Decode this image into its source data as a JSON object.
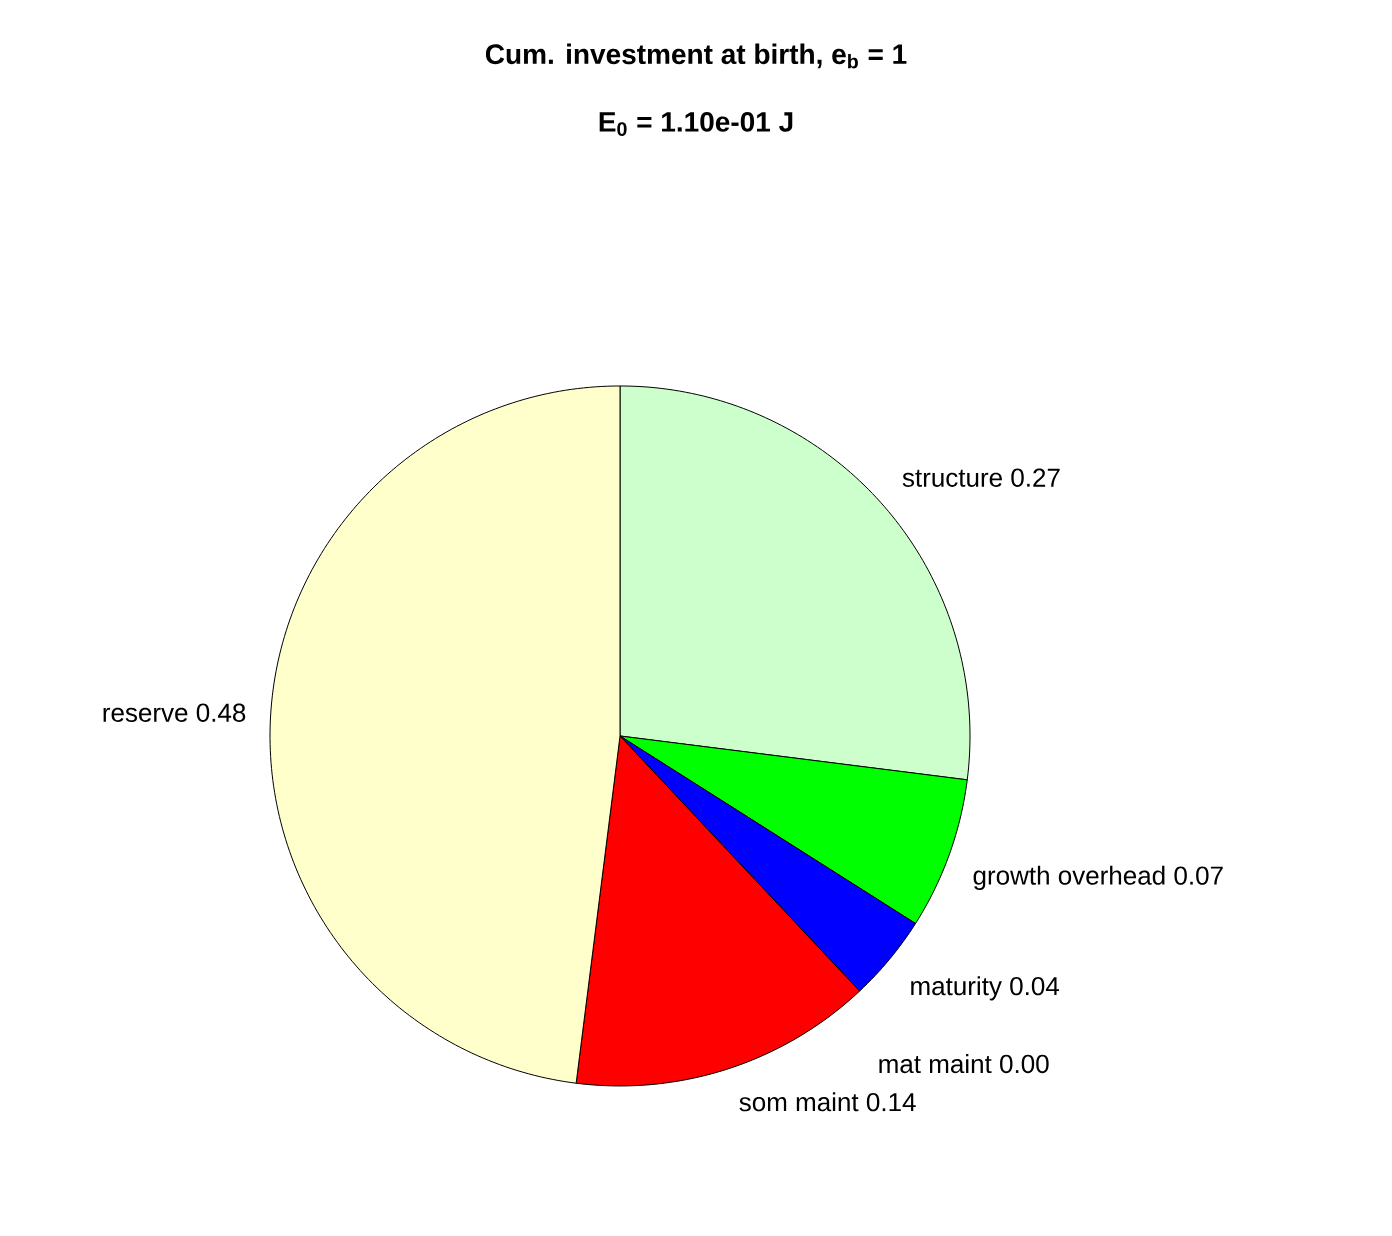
{
  "chart_data": {
    "type": "pie",
    "title": "Cum. investment at birth, e$_{b}$ = 1",
    "subtitle": "E$_{0}$ = 1.10e-01 J",
    "categories": [
      "structure",
      "growth overhead",
      "maturity",
      "mat maint",
      "som maint",
      "reserve"
    ],
    "values": [
      0.27,
      0.07,
      0.04,
      0.0,
      0.14,
      0.48
    ],
    "value_labels": [
      "0.27",
      "0.07",
      "0.04",
      "0.00",
      "0.14",
      "0.48"
    ],
    "colors": [
      "#ccffcc",
      "#00ff00",
      "#0000ff",
      "#ffffff",
      "#ff0000",
      "#ffffcc"
    ]
  }
}
